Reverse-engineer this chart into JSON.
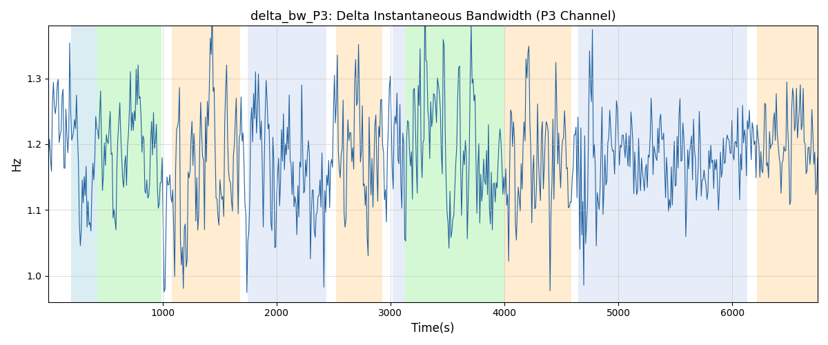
{
  "title": "delta_bw_P3: Delta Instantaneous Bandwidth (P3 Channel)",
  "xlabel": "Time(s)",
  "ylabel": "Hz",
  "ylim": [
    0.96,
    1.38
  ],
  "xlim": [
    0,
    6750
  ],
  "line_color": "#2060a0",
  "line_width": 0.8,
  "seed": 12345,
  "n_points": 800,
  "mean": 1.185,
  "background_color": "white",
  "grid_color": "#bbbbbb",
  "colored_bands": [
    {
      "xmin": 200,
      "xmax": 430,
      "color": "#add8e6",
      "alpha": 0.45
    },
    {
      "xmin": 430,
      "xmax": 990,
      "color": "#90ee90",
      "alpha": 0.38
    },
    {
      "xmin": 1080,
      "xmax": 1680,
      "color": "#ffd59b",
      "alpha": 0.45
    },
    {
      "xmin": 1750,
      "xmax": 2440,
      "color": "#c8d9f0",
      "alpha": 0.45
    },
    {
      "xmin": 2520,
      "xmax": 2930,
      "color": "#ffd59b",
      "alpha": 0.45
    },
    {
      "xmin": 3020,
      "xmax": 3130,
      "color": "#c8d9f0",
      "alpha": 0.45
    },
    {
      "xmin": 3130,
      "xmax": 4000,
      "color": "#90ee90",
      "alpha": 0.38
    },
    {
      "xmin": 4000,
      "xmax": 4590,
      "color": "#ffd59b",
      "alpha": 0.45
    },
    {
      "xmin": 4650,
      "xmax": 6130,
      "color": "#c8d9f0",
      "alpha": 0.45
    },
    {
      "xmin": 6220,
      "xmax": 6750,
      "color": "#ffd59b",
      "alpha": 0.45
    }
  ],
  "xticks": [
    1000,
    2000,
    3000,
    4000,
    5000,
    6000
  ],
  "yticks": [
    1.0,
    1.1,
    1.2,
    1.3
  ]
}
